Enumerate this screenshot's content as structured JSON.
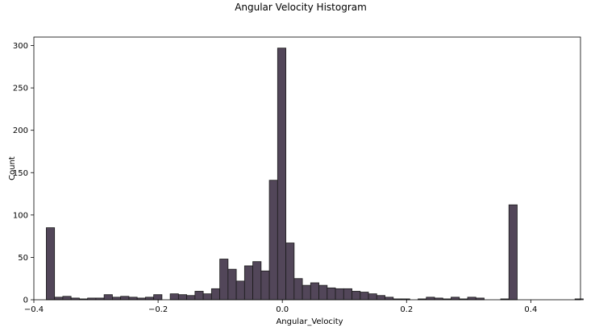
{
  "chart_data": {
    "type": "bar",
    "title": "Angular Velocity Histogram",
    "xlabel": "Angular_Velocity",
    "ylabel": "Count",
    "xlim": [
      -0.4,
      0.48
    ],
    "ylim": [
      0,
      310
    ],
    "xticks": [
      -0.4,
      -0.2,
      0.0,
      0.2,
      0.4
    ],
    "xtick_labels": [
      "−0.4",
      "−0.2",
      "0.0",
      "0.2",
      "0.4"
    ],
    "yticks": [
      0,
      50,
      100,
      150,
      200,
      250,
      300
    ],
    "ytick_labels": [
      "0",
      "50",
      "100",
      "150",
      "200",
      "250",
      "300"
    ],
    "grid": false,
    "bar_color": "#524659",
    "edge_color": "#1b1b1b",
    "bin_start": -0.38,
    "bin_width": 0.0133,
    "values": [
      85,
      3,
      4,
      2,
      1,
      2,
      2,
      6,
      3,
      4,
      3,
      2,
      3,
      6,
      0,
      7,
      6,
      5,
      10,
      7,
      13,
      48,
      36,
      22,
      40,
      45,
      34,
      141,
      297,
      67,
      25,
      17,
      20,
      17,
      14,
      13,
      13,
      10,
      9,
      7,
      5,
      3,
      1,
      1,
      0,
      1,
      3,
      2,
      1,
      3,
      1,
      3,
      2,
      0,
      0,
      1,
      112,
      0,
      0,
      0,
      0,
      0,
      0,
      0,
      1
    ]
  }
}
